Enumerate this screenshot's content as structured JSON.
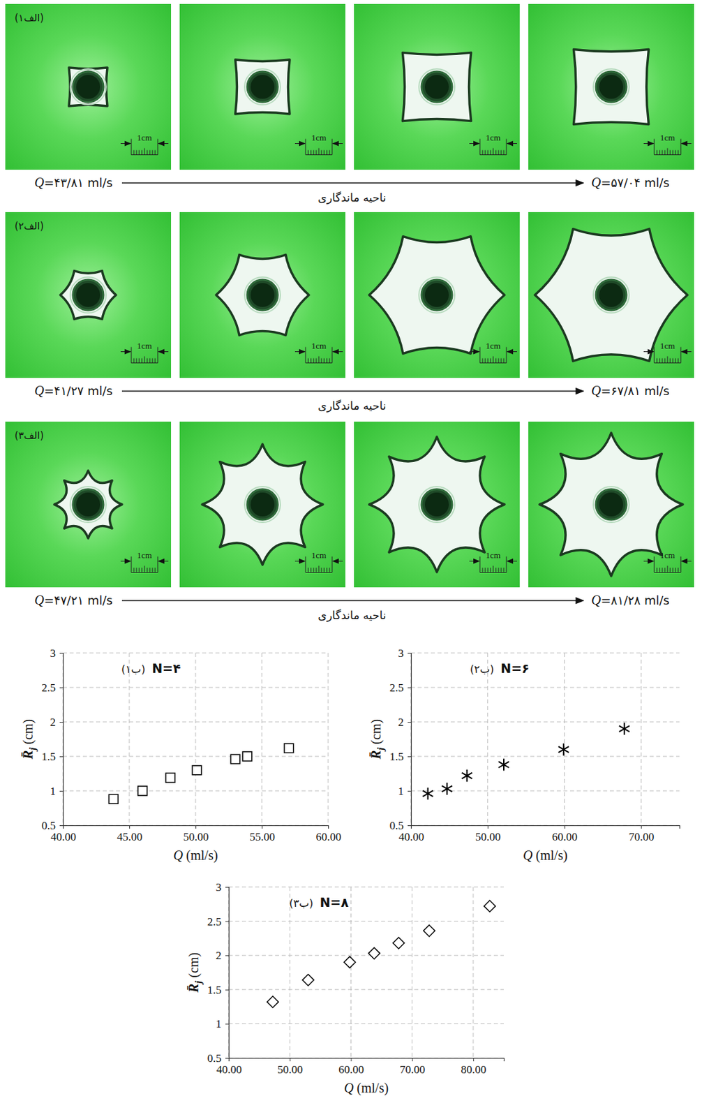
{
  "photos": {
    "scale_label": "1cm",
    "rows": [
      {
        "label": "(الف۱)",
        "q_start": "Q=۴۳/۸۱ ml/s",
        "q_end": "Q=۵۷/۰۴ ml/s",
        "caption": "ناحیه ماندگاری"
      },
      {
        "label": "(الف۲)",
        "q_start": "Q=۴۱/۲۷ ml/s",
        "q_end": "Q=۶۷/۸۱ ml/s",
        "caption": "ناحیه ماندگاری"
      },
      {
        "label": "(الف۳)",
        "q_start": "Q=۴۷/۲۱ ml/s",
        "q_end": "Q=۸۱/۲۸ ml/s",
        "caption": "ناحیه ماندگاری"
      }
    ]
  },
  "chart_data": [
    {
      "type": "scatter",
      "title": "N=۴",
      "panel_label": "(ب۱)",
      "xlabel": "Q (ml/s)",
      "ylabel": "R̄j (cm)",
      "x": [
        43.81,
        46.0,
        48.1,
        50.1,
        53.0,
        53.9,
        57.04
      ],
      "values": [
        0.88,
        1.0,
        1.19,
        1.3,
        1.46,
        1.5,
        1.62
      ],
      "color": "#000000",
      "marker": "square",
      "xlim": [
        40,
        60
      ],
      "xticks": [
        {
          "value": 40,
          "label": "40.00"
        },
        {
          "value": 45,
          "label": "45.00"
        },
        {
          "value": 50,
          "label": "50.00"
        },
        {
          "value": 55,
          "label": "55.00"
        },
        {
          "value": 60,
          "label": "60.00"
        }
      ],
      "ylim": [
        0.5,
        3
      ],
      "yticks": [
        0.5,
        1,
        1.5,
        2,
        2.5,
        3
      ],
      "grid": true
    },
    {
      "type": "scatter",
      "title": "N=۶",
      "panel_label": "(ب۲)",
      "xlabel": "Q (ml/s)",
      "ylabel": "R̄j (cm)",
      "x": [
        42.2,
        44.7,
        47.3,
        52.1,
        59.9,
        67.81
      ],
      "values": [
        0.96,
        1.03,
        1.22,
        1.38,
        1.6,
        1.9
      ],
      "color": "#000000",
      "marker": "asterisk",
      "xlim": [
        40,
        75
      ],
      "xticks": [
        {
          "value": 40,
          "label": "40.00"
        },
        {
          "value": 50,
          "label": "50.00"
        },
        {
          "value": 60,
          "label": "60.00"
        },
        {
          "value": 70,
          "label": "70.00"
        }
      ],
      "ylim": [
        0.5,
        3
      ],
      "yticks": [
        0.5,
        1,
        1.5,
        2,
        2.5,
        3
      ],
      "grid": true
    },
    {
      "type": "scatter",
      "title": "N=۸",
      "panel_label": "(ب۳)",
      "xlabel": "Q (ml/s)",
      "ylabel": "R̄j (cm)",
      "x": [
        47.21,
        53.0,
        59.8,
        63.8,
        67.8,
        72.8,
        82.7
      ],
      "values": [
        1.32,
        1.64,
        1.9,
        2.03,
        2.18,
        2.36,
        2.72
      ],
      "color": "#000000",
      "marker": "diamond",
      "xlim": [
        40,
        85
      ],
      "xticks": [
        {
          "value": 40,
          "label": "40.00"
        },
        {
          "value": 50,
          "label": "50.00"
        },
        {
          "value": 60,
          "label": "60.00"
        },
        {
          "value": 70,
          "label": "70.00"
        },
        {
          "value": 80,
          "label": "80.00"
        }
      ],
      "ylim": [
        0.5,
        3
      ],
      "yticks": [
        0.5,
        1,
        1.5,
        2,
        2.5,
        3
      ],
      "grid": true
    }
  ]
}
